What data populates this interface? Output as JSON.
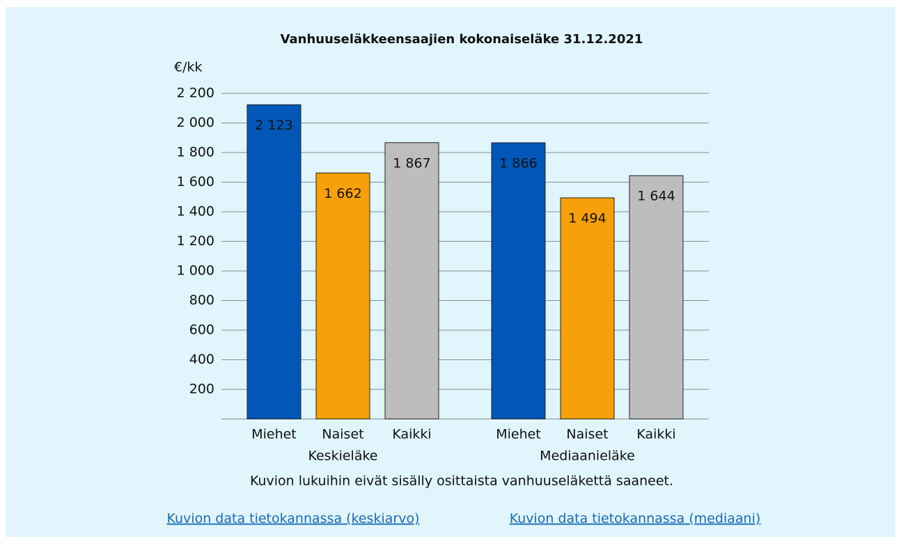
{
  "chart_data": {
    "type": "bar",
    "title": "Vanhuuseläkkeensaajien kokonaiseläke 31.12.2021",
    "y_axis_label": "€/kk",
    "categories": [
      "Keskieläke",
      "Mediaanieläke"
    ],
    "series": [
      {
        "name": "Miehet",
        "color": "#0057b8",
        "values": [
          2123,
          1866
        ],
        "value_labels": [
          "2 123",
          "1 866"
        ]
      },
      {
        "name": "Naiset",
        "color": "#f7a00a",
        "values": [
          1662,
          1494
        ],
        "value_labels": [
          "1 662",
          "1 494"
        ]
      },
      {
        "name": "Kaikki",
        "color": "#bdbdbd",
        "values": [
          1867,
          1644
        ],
        "value_labels": [
          "1 867",
          "1 644"
        ]
      }
    ],
    "ylim": [
      0,
      2200
    ],
    "yticks": [
      200,
      400,
      600,
      800,
      {
        "value": 1000,
        "label": "1 000"
      },
      {
        "value": 1200,
        "label": "1 200"
      },
      {
        "value": 1400,
        "label": "1 400"
      },
      {
        "value": 1600,
        "label": "1 600"
      },
      {
        "value": 1800,
        "label": "1 800"
      },
      {
        "value": 2000,
        "label": "2 000"
      },
      {
        "value": 2200,
        "label": "2 200"
      }
    ],
    "grid": true,
    "note": "Kuvion lukuihin eivät sisälly osittaista vanhuuseläkettä saaneet."
  },
  "links": [
    "Kuvion data tietokannassa (keskiarvo)",
    "Kuvion data tietokannassa (mediaani)"
  ]
}
